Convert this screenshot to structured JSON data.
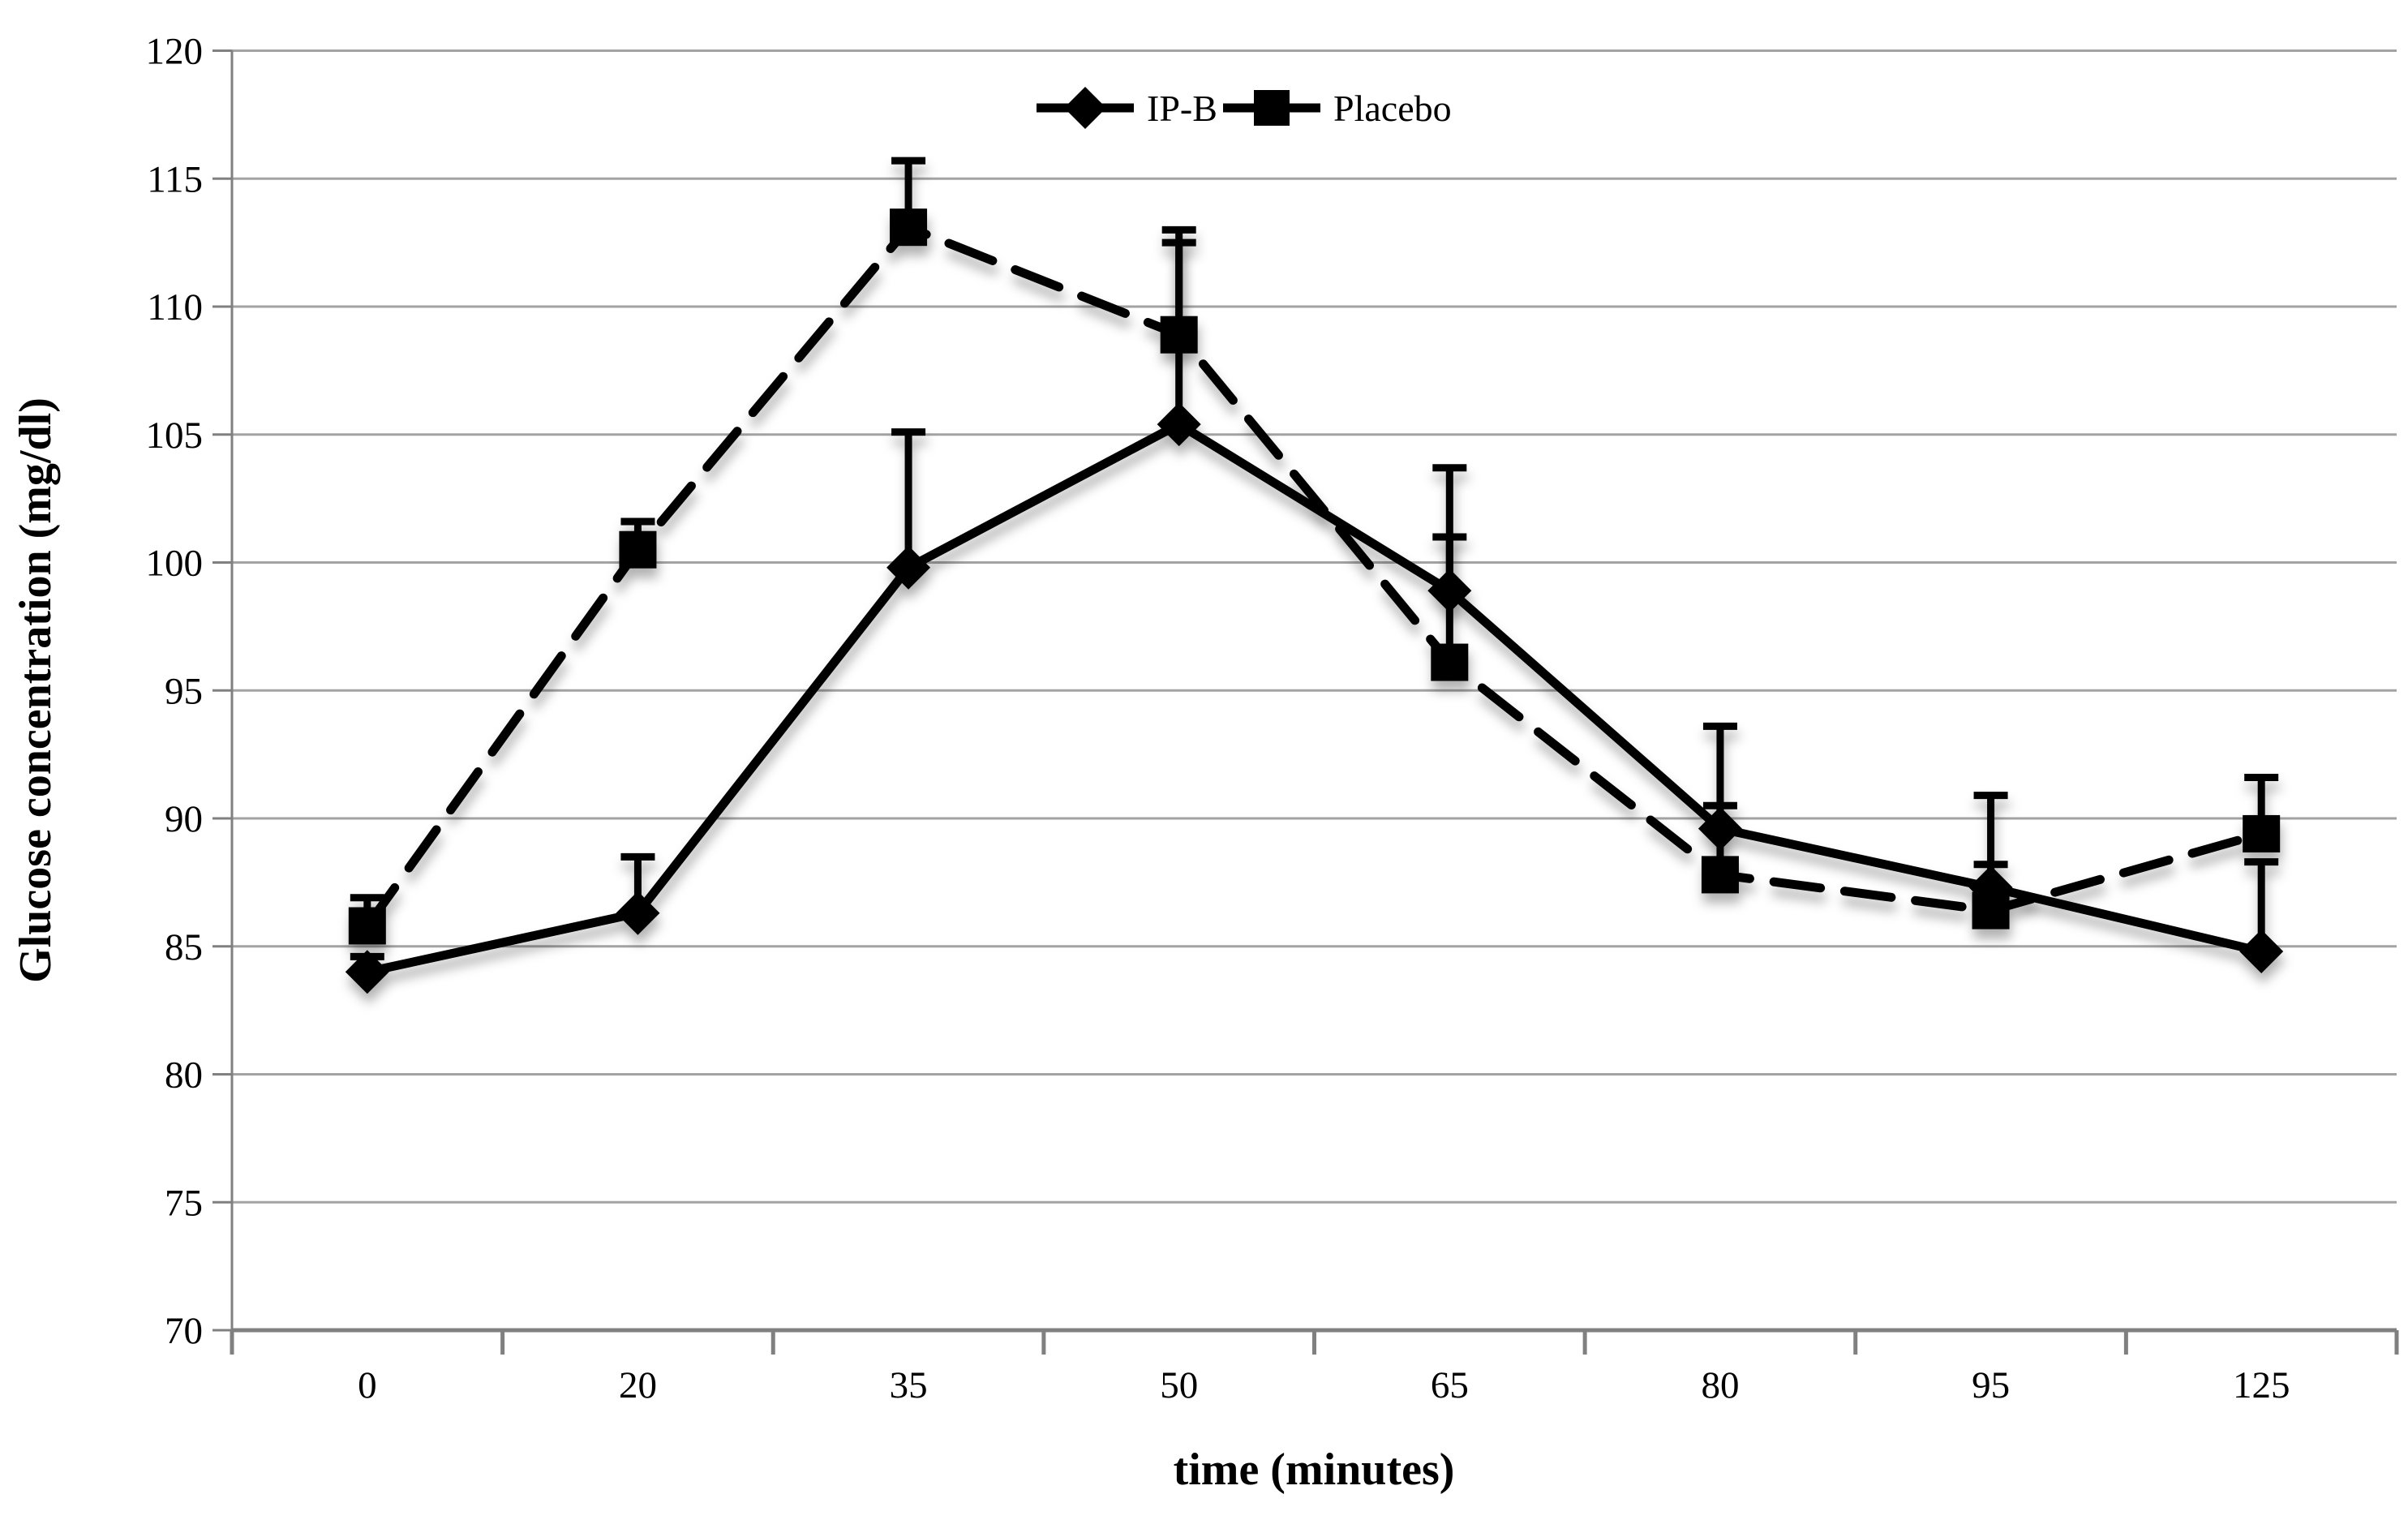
{
  "y_axis": {
    "title": "Glucose concentration (mg/dl)",
    "tick_labels": [
      "70",
      "75",
      "80",
      "85",
      "90",
      "95",
      "100",
      "105",
      "110",
      "115",
      "120"
    ],
    "min": 70,
    "max": 120,
    "step": 5
  },
  "x_axis": {
    "title": "time (minutes)",
    "tick_labels": [
      "0",
      "20",
      "35",
      "50",
      "65",
      "80",
      "95",
      "125"
    ]
  },
  "legend": {
    "items": [
      {
        "label": "IP-B",
        "marker": "diamond-icon",
        "line_style": "solid"
      },
      {
        "label": "Placebo",
        "marker": "square-icon",
        "line_style": "dashed"
      }
    ],
    "position": "top-center"
  },
  "colors": {
    "series": "#000000",
    "gridline": "#a3a3a3",
    "axis": "#808080",
    "background": "#ffffff"
  },
  "chart_data": {
    "type": "line",
    "categories": [
      0,
      20,
      35,
      50,
      65,
      80,
      95,
      125
    ],
    "series": [
      {
        "name": "IP-B",
        "marker": "diamond",
        "line_style": "solid",
        "values": [
          84.0,
          86.3,
          99.8,
          105.4,
          98.9,
          89.6,
          87.3,
          84.8
        ],
        "error_up": [
          0.6,
          2.2,
          5.3,
          7.1,
          4.8,
          4.0,
          3.6,
          3.5
        ]
      },
      {
        "name": "Placebo",
        "marker": "square",
        "line_style": "dashed",
        "values": [
          85.8,
          100.5,
          113.1,
          108.9,
          96.1,
          87.8,
          86.4,
          89.4
        ],
        "error_up": [
          1.1,
          1.1,
          2.6,
          4.1,
          4.9,
          2.7,
          1.8,
          2.2
        ]
      }
    ],
    "title": "",
    "xlabel": "time (minutes)",
    "ylabel": "Glucose concentration (mg/dl)",
    "ylim": [
      70,
      120
    ],
    "grid": true,
    "legend_position": "top-center",
    "error_bars": "upward-only"
  }
}
